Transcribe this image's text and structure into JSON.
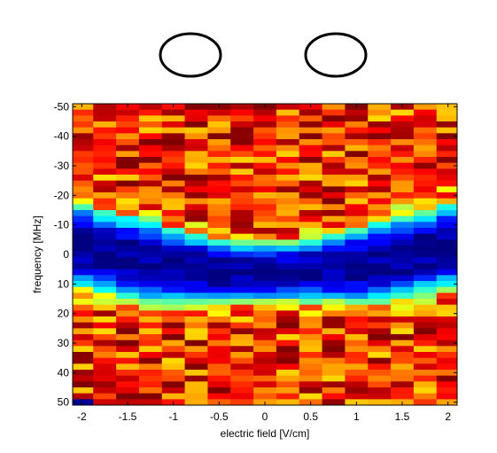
{
  "chart_data": {
    "type": "heatmap",
    "xlabel": "electric field [V/cm]",
    "ylabel": "frequency [MHz]",
    "xlim": [
      -2.1,
      2.1
    ],
    "ylim": [
      -51,
      51
    ],
    "y_reversed": true,
    "x_ticks": [
      -2,
      -1.5,
      -1,
      -0.5,
      0,
      0.5,
      1,
      1.5,
      2
    ],
    "x_tick_labels": [
      "-2",
      "-1.5",
      "-1",
      "-0.5",
      "0",
      "0.5",
      "1",
      "1.5",
      "2"
    ],
    "y_ticks": [
      -50,
      -40,
      -30,
      -20,
      -10,
      0,
      10,
      20,
      30,
      40,
      50
    ],
    "y_tick_labels": [
      "-50",
      "-40",
      "-30",
      "-20",
      "-10",
      "0",
      "10",
      "20",
      "30",
      "40",
      "50"
    ],
    "colormap": "jet",
    "x_centers": [
      -2.0,
      -1.75,
      -1.5,
      -1.25,
      -1.0,
      -0.75,
      -0.5,
      -0.25,
      0.0,
      0.25,
      0.5,
      0.75,
      1.0,
      1.25,
      1.5,
      1.75,
      2.0
    ],
    "y_range": [
      -51,
      51
    ],
    "y_bins": 51,
    "grid": false,
    "annotations": [
      {
        "shape": "ellipse",
        "label": ""
      },
      {
        "shape": "ellipse",
        "label": ""
      }
    ]
  }
}
